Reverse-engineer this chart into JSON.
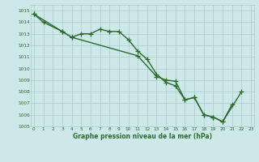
{
  "series1_x": [
    0,
    1,
    3,
    4,
    5,
    6,
    7,
    8,
    9,
    10,
    11,
    12,
    13,
    14,
    15,
    16,
    17,
    18,
    19,
    20,
    21
  ],
  "series1_y": [
    1014.7,
    1014.0,
    1013.2,
    1012.7,
    1013.0,
    1013.0,
    1013.4,
    1013.2,
    1013.2,
    1012.5,
    1011.5,
    1010.8,
    1009.5,
    1008.8,
    1008.5,
    1007.3,
    1007.5,
    1006.0,
    1005.8,
    1005.4,
    1006.9
  ],
  "series2_x": [
    0,
    3,
    4,
    11,
    13,
    14,
    15,
    16,
    17,
    18,
    19,
    20,
    22
  ],
  "series2_y": [
    1014.7,
    1013.2,
    1012.7,
    1011.1,
    1009.3,
    1009.0,
    1008.9,
    1007.3,
    1007.5,
    1006.0,
    1005.8,
    1005.4,
    1008.0
  ],
  "ylim": [
    1005,
    1015.5
  ],
  "xlim": [
    -0.3,
    23.3
  ],
  "yticks": [
    1005,
    1006,
    1007,
    1008,
    1009,
    1010,
    1011,
    1012,
    1013,
    1014,
    1015
  ],
  "xticks": [
    0,
    1,
    2,
    3,
    4,
    5,
    6,
    7,
    8,
    9,
    10,
    11,
    12,
    13,
    14,
    15,
    16,
    17,
    18,
    19,
    20,
    21,
    22,
    23
  ],
  "xlabel": "Graphe pression niveau de la mer (hPa)",
  "line_color": "#2d6a2d",
  "bg_color": "#cce8e8",
  "grid_color": "#aacccc",
  "line_width": 1.0,
  "marker_size": 4
}
